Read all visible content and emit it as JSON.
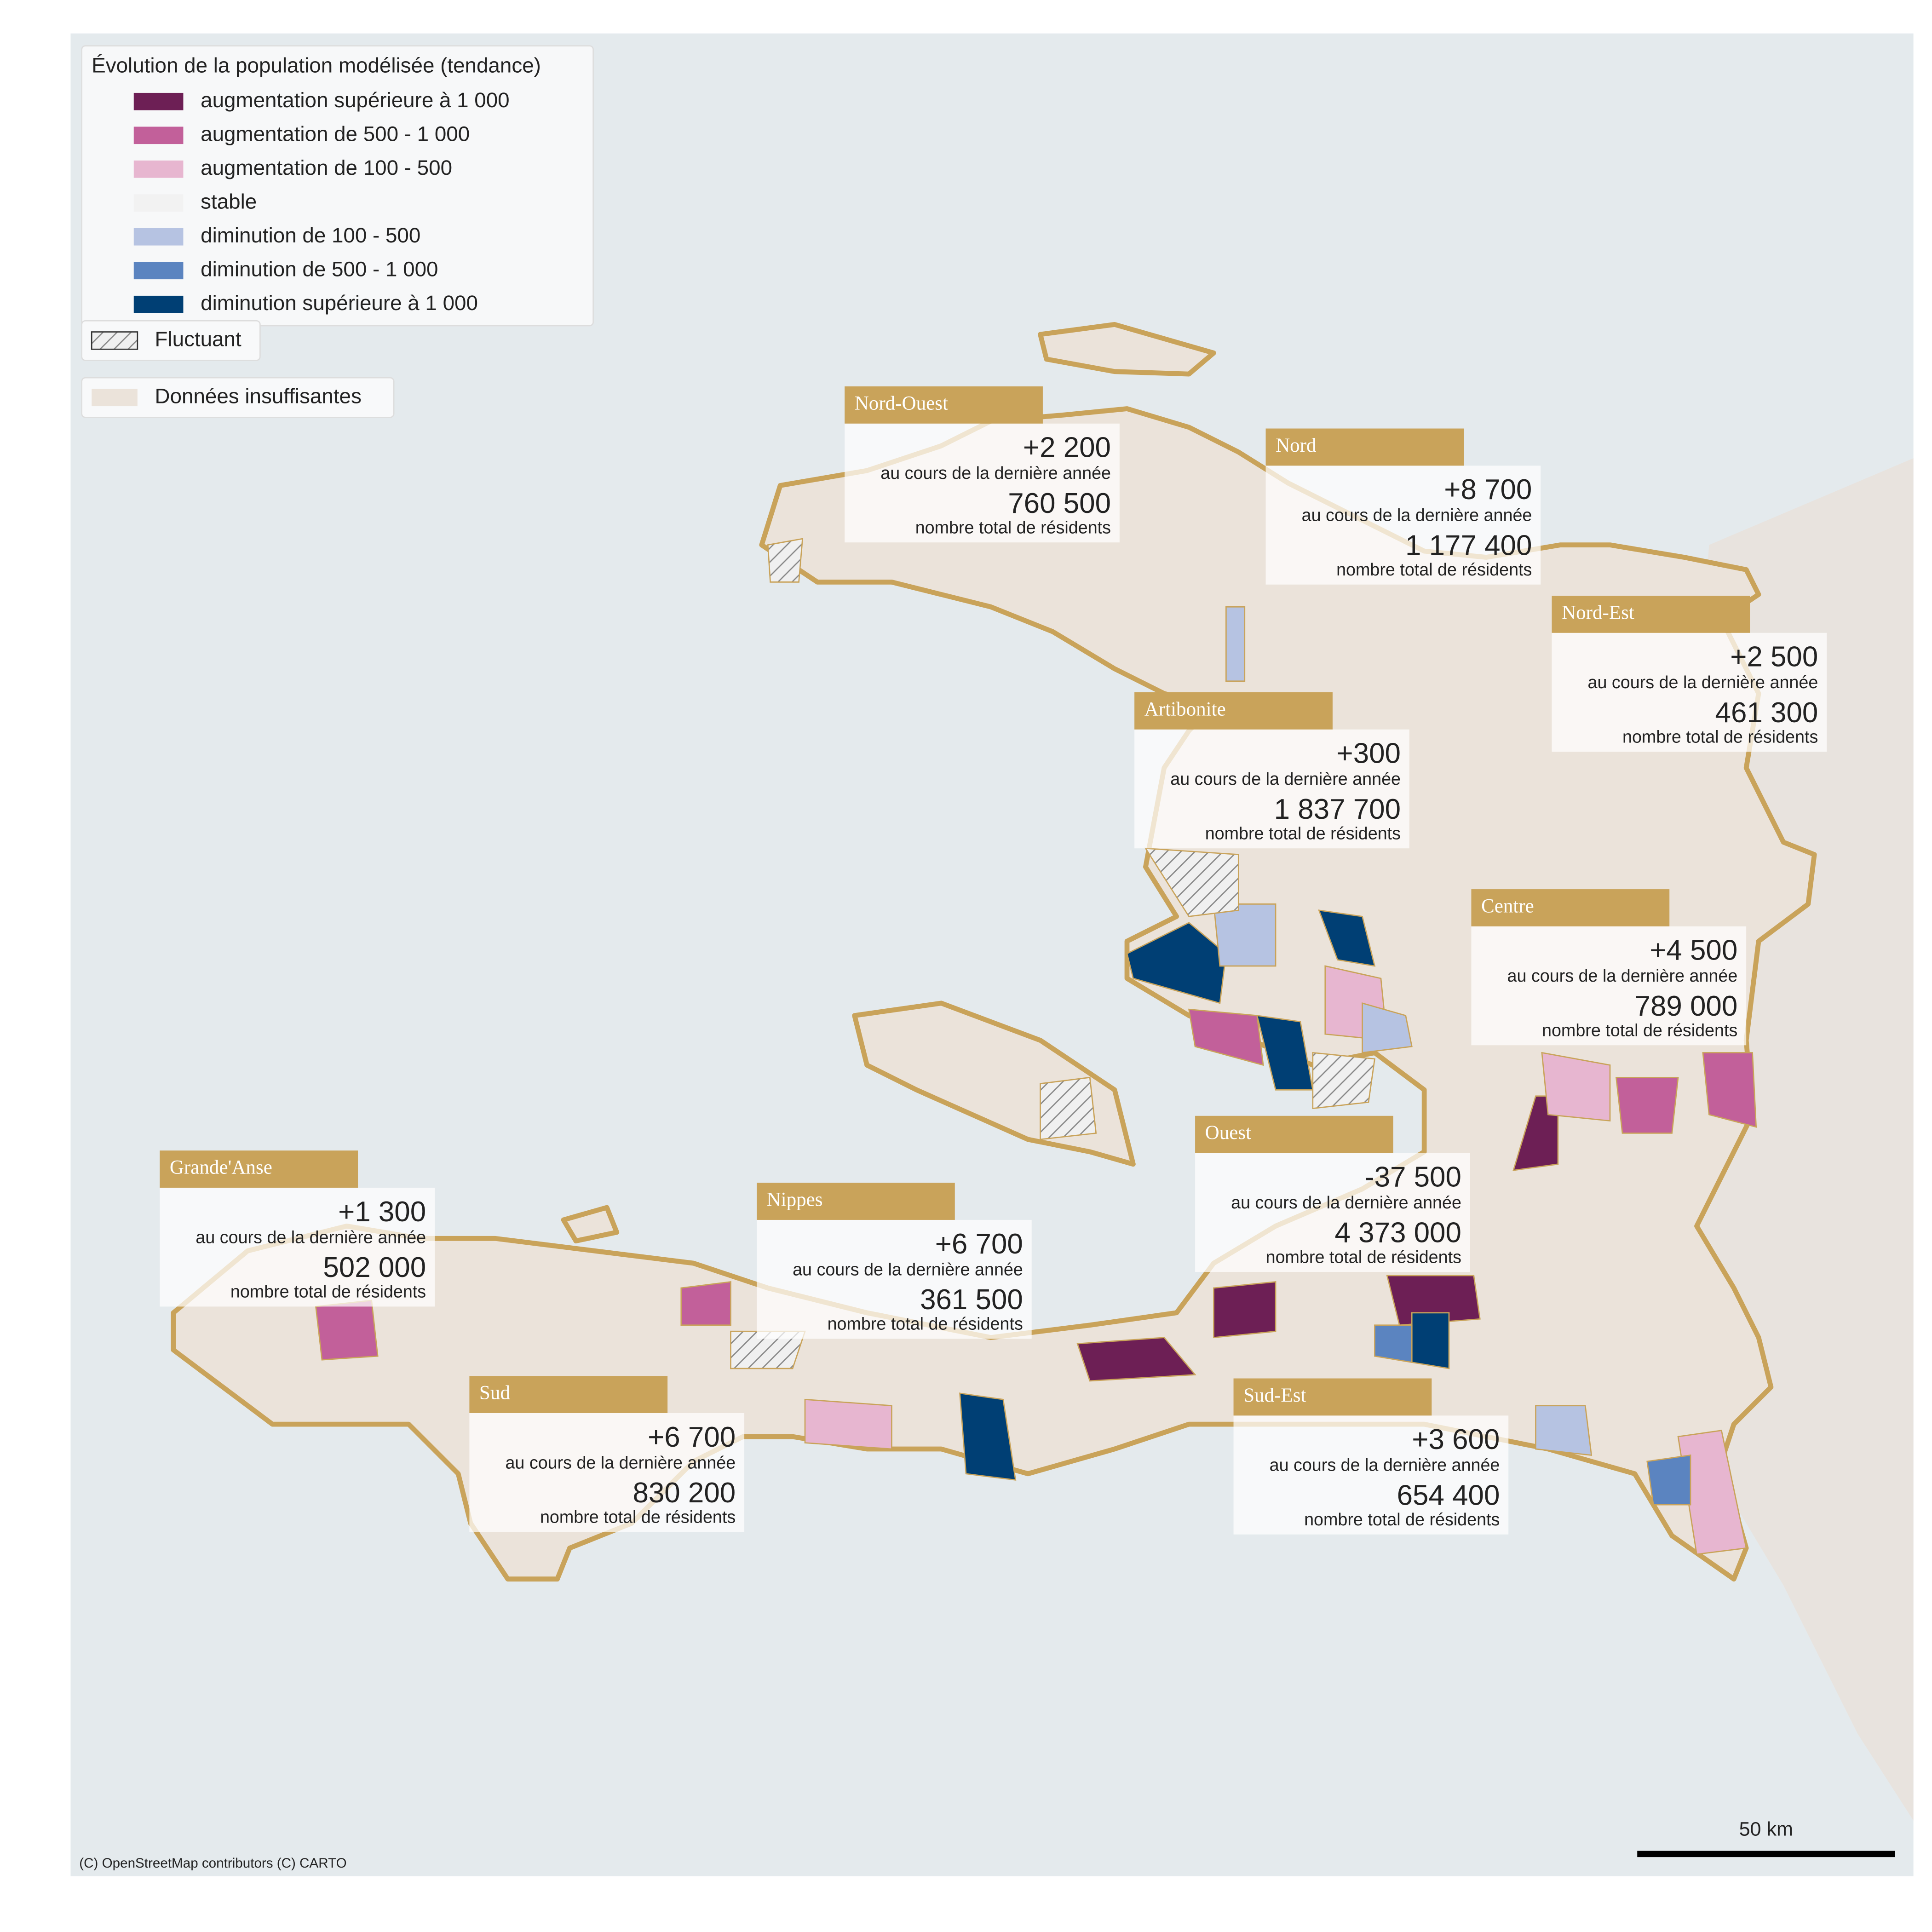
{
  "legend": {
    "title": "Évolution de la population modélisée (tendance)",
    "items": [
      {
        "label": "augmentation supérieure à 1 000",
        "color": "#6d1f55"
      },
      {
        "label": "augmentation de 500 - 1 000",
        "color": "#c2609a"
      },
      {
        "label": "augmentation de 100 - 500",
        "color": "#e7b6d0"
      },
      {
        "label": "stable",
        "color": "#f2f2f2"
      },
      {
        "label": "diminution de 100 - 500",
        "color": "#b6c3e2"
      },
      {
        "label": "diminution de 500 - 1 000",
        "color": "#5b84c0"
      },
      {
        "label": "diminution supérieure à 1 000",
        "color": "#003f74"
      }
    ],
    "hatched": "Fluctuant",
    "insufficient": "Données insuffisantes"
  },
  "regions": [
    {
      "name": "Nord-Ouest",
      "change": "+2 200",
      "change_label": "au cours de la dernière année",
      "total": "760 500",
      "total_label": "nombre total de résidents"
    },
    {
      "name": "Nord",
      "change": "+8 700",
      "change_label": "au cours de la dernière année",
      "total": "1 177 400",
      "total_label": "nombre total de résidents"
    },
    {
      "name": "Nord-Est",
      "change": "+2 500",
      "change_label": "au cours de la dernière année",
      "total": "461 300",
      "total_label": "nombre total de résidents"
    },
    {
      "name": "Artibonite",
      "change": "+300",
      "change_label": "au cours de la dernière année",
      "total": "1 837 700",
      "total_label": "nombre total de résidents"
    },
    {
      "name": "Centre",
      "change": "+4 500",
      "change_label": "au cours de la dernière année",
      "total": "789 000",
      "total_label": "nombre total de résidents"
    },
    {
      "name": "Ouest",
      "change": "-37 500",
      "change_label": "au cours de la dernière année",
      "total": "4 373 000",
      "total_label": "nombre total de résidents"
    },
    {
      "name": "Grande'Anse",
      "change": "+1 300",
      "change_label": "au cours de la dernière année",
      "total": "502 000",
      "total_label": "nombre total de résidents"
    },
    {
      "name": "Nippes",
      "change": "+6 700",
      "change_label": "au cours de la dernière année",
      "total": "361 500",
      "total_label": "nombre total de résidents"
    },
    {
      "name": "Sud",
      "change": "+6 700",
      "change_label": "au cours de la dernière année",
      "total": "830 200",
      "total_label": "nombre total de résidents"
    },
    {
      "name": "Sud-Est",
      "change": "+3 600",
      "change_label": "au cours de la dernière année",
      "total": "654 400",
      "total_label": "nombre total de résidents"
    }
  ],
  "scale_bar": "50 km",
  "attribution": "(C) OpenStreetMap contributors (C) CARTO"
}
